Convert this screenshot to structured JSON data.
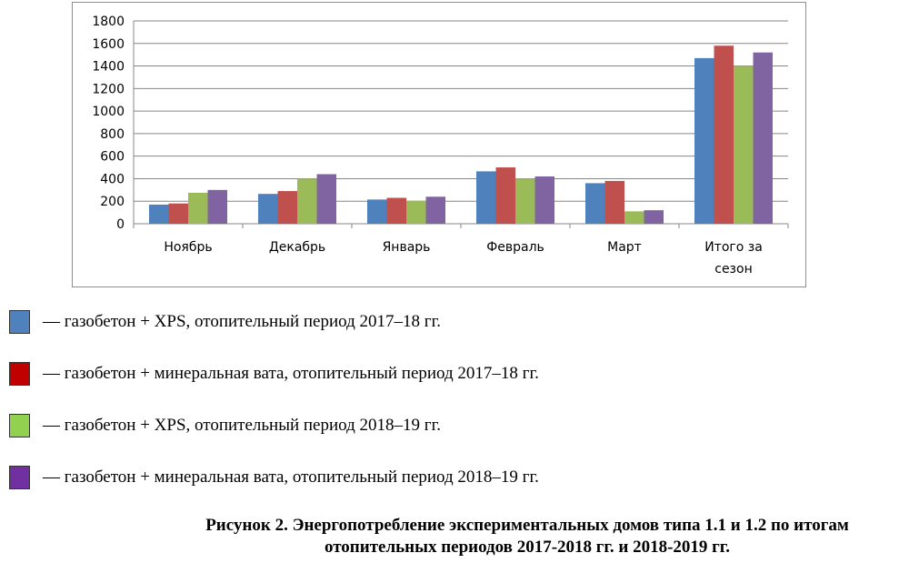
{
  "chart_data": {
    "type": "bar",
    "categories": [
      [
        "Ноябрь"
      ],
      [
        "Декабрь"
      ],
      [
        "Январь"
      ],
      [
        "Февраль"
      ],
      [
        "Март"
      ],
      [
        "Итого за",
        "сезон"
      ]
    ],
    "series": [
      {
        "name": "— газобетон + XPS, отопительный период 2017–18 гг.",
        "color": "#4f81bd",
        "values": [
          170,
          265,
          215,
          465,
          360,
          1470
        ]
      },
      {
        "name": "— газобетон + минеральная вата, отопительный период 2017–18 гг.",
        "color": "#c0504d",
        "values": [
          180,
          290,
          230,
          500,
          380,
          1580
        ]
      },
      {
        "name": "— газобетон + XPS, отопительный период 2018–19 гг.",
        "color": "#9bbb59",
        "values": [
          275,
          400,
          205,
          400,
          110,
          1400
        ]
      },
      {
        "name": "— газобетон + минеральная вата, отопительный период 2018–19 гг.",
        "color": "#8064a2",
        "values": [
          300,
          440,
          240,
          420,
          120,
          1520
        ]
      }
    ],
    "ylim": [
      0,
      1800
    ],
    "yticks": [
      0,
      200,
      400,
      600,
      800,
      1000,
      1200,
      1400,
      1600,
      1800
    ],
    "grid": true,
    "legend_placement": "below"
  },
  "legend_swatch_colors": [
    "#4f81bd",
    "#c00000",
    "#92d050",
    "#7030a0"
  ],
  "caption": {
    "line1": "Рисунок 2. Энергопотребление экспериментальных домов типа 1.1 и 1.2 по итогам",
    "line2": "отопительных периодов 2017-2018 гг. и 2018-2019 гг."
  }
}
